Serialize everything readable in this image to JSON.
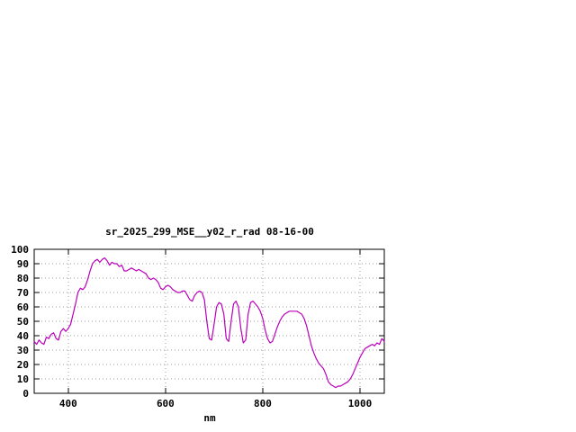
{
  "window": {
    "background": "#ffffff"
  },
  "chart_data": {
    "type": "line",
    "title": "sr_2025_299_MSE__y02_r_rad 08-16-00",
    "xlabel": "nm",
    "ylabel": "",
    "xlim": [
      330,
      1050
    ],
    "ylim": [
      0,
      100
    ],
    "xticks": [
      400,
      600,
      800,
      1000
    ],
    "yticks": [
      0,
      10,
      20,
      30,
      40,
      50,
      60,
      70,
      80,
      90,
      100
    ],
    "grid": true,
    "legend": "none",
    "axis_color": "#000000",
    "grid_color": "#9c9c9c",
    "text_color": "#000000",
    "series": [
      {
        "name": "sr_2025_299_MSE__y02_r_rad",
        "color": "#bb00bb",
        "x_start": 330,
        "x_step": 5,
        "values": [
          36,
          34,
          37,
          35,
          34,
          39,
          38,
          41,
          42,
          38,
          37,
          43,
          45,
          43,
          45,
          48,
          55,
          62,
          70,
          73,
          72,
          74,
          79,
          85,
          90,
          92,
          93,
          91,
          93,
          94,
          92,
          89,
          91,
          90,
          90,
          88,
          89,
          85,
          85,
          86,
          87,
          86,
          85,
          86,
          85,
          84,
          83,
          80,
          79,
          80,
          79,
          77,
          73,
          72,
          74,
          75,
          74,
          72,
          71,
          70,
          70,
          71,
          71,
          68,
          65,
          64,
          68,
          70,
          71,
          70,
          65,
          50,
          38,
          37,
          48,
          60,
          63,
          62,
          55,
          38,
          36,
          50,
          62,
          64,
          60,
          45,
          35,
          37,
          55,
          63,
          64,
          62,
          60,
          57,
          52,
          44,
          38,
          35,
          36,
          41,
          46,
          50,
          53,
          55,
          56,
          57,
          57,
          57,
          57,
          56,
          55,
          52,
          47,
          40,
          33,
          28,
          24,
          21,
          19,
          17,
          13,
          8,
          6,
          5,
          4,
          5,
          5,
          6,
          7,
          8,
          10,
          13,
          17,
          21,
          25,
          28,
          31,
          32,
          33,
          34,
          33,
          35,
          34,
          38,
          36
        ]
      }
    ]
  }
}
